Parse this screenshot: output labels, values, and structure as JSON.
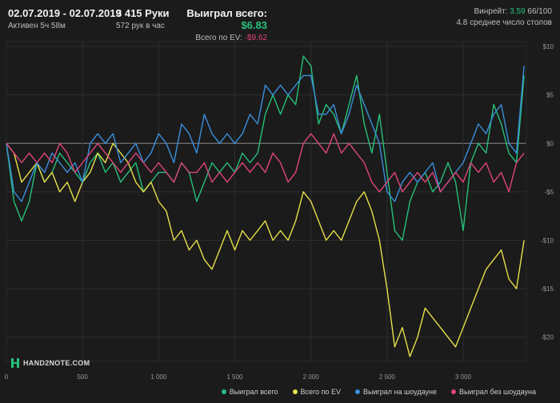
{
  "header": {
    "date_range": "02.07.2019 - 02.07.2019",
    "active": "Активен 5ч 58м",
    "hands": "3 415 Руки",
    "hands_per_hour": "572 рук в час",
    "won_total_label": "Выиграл всего:",
    "won_total_value": "$6.83",
    "ev_label": "Всего по EV:",
    "ev_value": "-$9.62",
    "winrate_label": "Винрейт:",
    "winrate_value": "3.59",
    "winrate_suffix": "66/100",
    "avg_tables": "4.8 среднее число столов"
  },
  "logo_text": "HAND2NOTE.COM",
  "colors": {
    "background": "#1b1b1b",
    "grid": "#2e2e2e",
    "zero_line": "#8a8a8a",
    "won_total": "#27c07a",
    "ev": "#e8e04a",
    "showdown": "#3a8fdc",
    "no_showdown": "#e0457b"
  },
  "chart_data": {
    "type": "line",
    "xlabel": "",
    "ylabel": "",
    "xlim": [
      0,
      3415
    ],
    "ylim": [
      -22.5,
      10.5
    ],
    "x_ticks": [
      0,
      500,
      1000,
      1500,
      2000,
      2500,
      3000
    ],
    "x_tick_labels": [
      "0",
      "500",
      "1 000",
      "1 500",
      "2 000",
      "2 500",
      "3 000"
    ],
    "y_ticks": [
      10,
      5,
      0,
      -5,
      -10,
      -15,
      -20
    ],
    "y_tick_labels": [
      "$10",
      "$5",
      "$0",
      "-$5",
      "-$10",
      "-$15",
      "-$20"
    ],
    "grid": true,
    "legend": "bottom-right",
    "series": [
      {
        "name": "Выиграл всего",
        "color": "#27c07a",
        "x": [
          0,
          50,
          100,
          150,
          200,
          250,
          300,
          350,
          400,
          450,
          500,
          550,
          600,
          650,
          700,
          750,
          800,
          850,
          900,
          950,
          1000,
          1050,
          1100,
          1150,
          1200,
          1250,
          1300,
          1350,
          1400,
          1450,
          1500,
          1550,
          1600,
          1650,
          1700,
          1750,
          1800,
          1850,
          1900,
          1950,
          2000,
          2050,
          2100,
          2150,
          2200,
          2250,
          2300,
          2350,
          2400,
          2450,
          2500,
          2550,
          2600,
          2650,
          2700,
          2750,
          2800,
          2850,
          2900,
          2950,
          3000,
          3050,
          3100,
          3150,
          3200,
          3250,
          3300,
          3350,
          3400
        ],
        "y": [
          0,
          -6,
          -8,
          -6,
          -2,
          -4,
          -3,
          -1,
          -2,
          -3,
          -4,
          -2,
          -1,
          -3,
          -2,
          -4,
          -3,
          -2,
          -5,
          -4,
          -3,
          -3,
          -4,
          -2,
          -3,
          -6,
          -4,
          -2,
          -3,
          -2,
          -3,
          -1,
          -2,
          -1,
          3,
          5,
          3,
          5,
          4,
          9,
          8,
          2,
          4,
          3,
          1,
          4,
          7,
          2,
          -1,
          3,
          -3,
          -9,
          -10,
          -6,
          -4,
          -3,
          -5,
          -4,
          -2,
          -4,
          -9,
          -2,
          0,
          -1,
          4,
          2,
          -1,
          -2,
          7
        ]
      },
      {
        "name": "Всего по EV",
        "color": "#e8e04a",
        "x": [
          0,
          50,
          100,
          150,
          200,
          250,
          300,
          350,
          400,
          450,
          500,
          550,
          600,
          650,
          700,
          750,
          800,
          850,
          900,
          950,
          1000,
          1050,
          1100,
          1150,
          1200,
          1250,
          1300,
          1350,
          1400,
          1450,
          1500,
          1550,
          1600,
          1650,
          1700,
          1750,
          1800,
          1850,
          1900,
          1950,
          2000,
          2050,
          2100,
          2150,
          2200,
          2250,
          2300,
          2350,
          2400,
          2450,
          2500,
          2550,
          2600,
          2650,
          2700,
          2750,
          2800,
          2850,
          2900,
          2950,
          3000,
          3050,
          3100,
          3150,
          3200,
          3250,
          3300,
          3350,
          3400
        ],
        "y": [
          0,
          -1,
          -4,
          -3,
          -2,
          -4,
          -3,
          -5,
          -4,
          -6,
          -4,
          -3,
          -1,
          -2,
          0,
          -1,
          -2,
          -4,
          -5,
          -4,
          -6,
          -7,
          -10,
          -9,
          -11,
          -10,
          -12,
          -13,
          -11,
          -9,
          -11,
          -9,
          -10,
          -9,
          -8,
          -10,
          -9,
          -10,
          -8,
          -5,
          -6,
          -8,
          -10,
          -9,
          -10,
          -8,
          -6,
          -5,
          -7,
          -10,
          -15,
          -21,
          -19,
          -22,
          -20,
          -17,
          -18,
          -19,
          -20,
          -21,
          -19,
          -17,
          -15,
          -13,
          -12,
          -11,
          -14,
          -15,
          -10
        ]
      },
      {
        "name": "Выиграл на шоудауне",
        "color": "#3a8fdc",
        "x": [
          0,
          50,
          100,
          150,
          200,
          250,
          300,
          350,
          400,
          450,
          500,
          550,
          600,
          650,
          700,
          750,
          800,
          850,
          900,
          950,
          1000,
          1050,
          1100,
          1150,
          1200,
          1250,
          1300,
          1350,
          1400,
          1450,
          1500,
          1550,
          1600,
          1650,
          1700,
          1750,
          1800,
          1850,
          1900,
          1950,
          2000,
          2050,
          2100,
          2150,
          2200,
          2250,
          2300,
          2350,
          2400,
          2450,
          2500,
          2550,
          2600,
          2650,
          2700,
          2750,
          2800,
          2850,
          2900,
          2950,
          3000,
          3050,
          3100,
          3150,
          3200,
          3250,
          3300,
          3350,
          3400
        ],
        "y": [
          0,
          -5,
          -6,
          -4,
          -2,
          -3,
          -1,
          -2,
          -3,
          -2,
          -4,
          0,
          1,
          0,
          1,
          -2,
          -1,
          0,
          -2,
          -1,
          1,
          0,
          -2,
          2,
          1,
          -1,
          3,
          1,
          0,
          1,
          0,
          1,
          3,
          2,
          6,
          5,
          6,
          5,
          6,
          7,
          7,
          3,
          3,
          4,
          1,
          3,
          6,
          4,
          2,
          0,
          -5,
          -6,
          -4,
          -3,
          -4,
          -3,
          -2,
          -5,
          -4,
          -3,
          -2,
          0,
          2,
          1,
          3,
          4,
          0,
          -1,
          8
        ]
      },
      {
        "name": "Выиграл без шоудауна",
        "color": "#e0457b",
        "x": [
          0,
          50,
          100,
          150,
          200,
          250,
          300,
          350,
          400,
          450,
          500,
          550,
          600,
          650,
          700,
          750,
          800,
          850,
          900,
          950,
          1000,
          1050,
          1100,
          1150,
          1200,
          1250,
          1300,
          1350,
          1400,
          1450,
          1500,
          1550,
          1600,
          1650,
          1700,
          1750,
          1800,
          1850,
          1900,
          1950,
          2000,
          2050,
          2100,
          2150,
          2200,
          2250,
          2300,
          2350,
          2400,
          2450,
          2500,
          2550,
          2600,
          2650,
          2700,
          2750,
          2800,
          2850,
          2900,
          2950,
          3000,
          3050,
          3100,
          3150,
          3200,
          3250,
          3300,
          3350,
          3400
        ],
        "y": [
          0,
          -1,
          -2,
          -1,
          -2,
          -1,
          -2,
          0,
          -1,
          -3,
          -2,
          -1,
          0,
          -1,
          -2,
          -3,
          -2,
          -1,
          -2,
          -3,
          -2,
          -3,
          -4,
          -2,
          -3,
          -3,
          -2,
          -4,
          -3,
          -4,
          -3,
          -2,
          -3,
          -2,
          -3,
          -1,
          -2,
          -4,
          -3,
          0,
          1,
          0,
          -1,
          1,
          -1,
          0,
          -1,
          -2,
          -4,
          -5,
          -4,
          -3,
          -5,
          -4,
          -3,
          -4,
          -3,
          -5,
          -4,
          -3,
          -4,
          -2,
          -3,
          -2,
          -4,
          -3,
          -5,
          -2,
          -1
        ]
      }
    ]
  }
}
